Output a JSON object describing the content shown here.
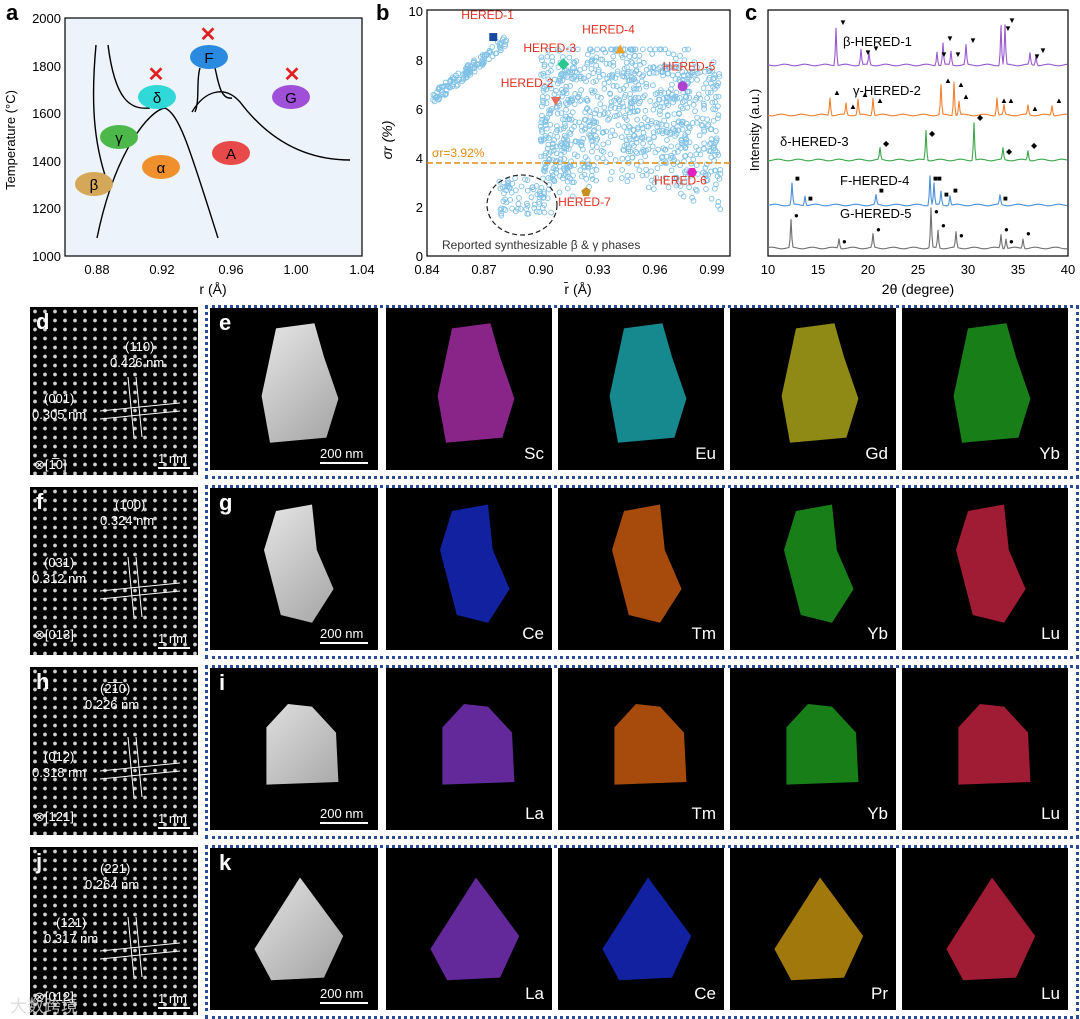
{
  "panels": {
    "a": "a",
    "b": "b",
    "c": "c",
    "d": "d",
    "e": "e",
    "f": "f",
    "g": "g",
    "h": "h",
    "i": "i",
    "j": "j",
    "k": "k"
  },
  "panel_a": {
    "ylabel": "Temperature (°C)",
    "xlabel": "r (Å)",
    "yticks": [
      "1000",
      "1200",
      "1400",
      "1600",
      "1800",
      "2000"
    ],
    "xticks": [
      "0.88",
      "0.92",
      "0.96",
      "1.00",
      "1.04"
    ],
    "phases": {
      "beta": "β",
      "gamma": "γ",
      "alpha": "α",
      "delta": "δ",
      "F": "F",
      "A": "A",
      "G": "G"
    },
    "cross": "✕"
  },
  "panel_b": {
    "ylabel": "σr (%)",
    "xlabel": "r̄ (Å)",
    "yticks": [
      "0",
      "2",
      "4",
      "6",
      "8",
      "10"
    ],
    "xticks": [
      "0.84",
      "0.87",
      "0.90",
      "0.93",
      "0.96",
      "0.99"
    ],
    "threshold_label": "σr=3.92%",
    "threshold": 3.92,
    "reported_label": "Reported synthesizable β & γ phases",
    "points": [
      {
        "label": "HERED-1",
        "x": 0.875,
        "y": 8.9
      },
      {
        "label": "HERED-2",
        "x": 0.908,
        "y": 6.3
      },
      {
        "label": "HERED-3",
        "x": 0.912,
        "y": 7.8
      },
      {
        "label": "HERED-4",
        "x": 0.942,
        "y": 8.4
      },
      {
        "label": "HERED-5",
        "x": 0.975,
        "y": 6.9
      },
      {
        "label": "HERED-6",
        "x": 0.98,
        "y": 3.4
      },
      {
        "label": "HERED-7",
        "x": 0.924,
        "y": 2.6
      }
    ]
  },
  "panel_c": {
    "ylabel": "Intensity (a.u.)",
    "xlabel": "2θ (degree)",
    "xticks": [
      "10",
      "15",
      "20",
      "25",
      "30",
      "35",
      "40"
    ],
    "traces": [
      "β-HERED-1",
      "γ-HERED-2",
      "δ-HERED-3",
      "F-HERED-4",
      "G-HERED-5"
    ],
    "trace_colors": [
      "#9b59d0",
      "#f08030",
      "#3aa84a",
      "#4a90d8",
      "#707070"
    ]
  },
  "hrtem": {
    "d": {
      "plane1": "(110)",
      "d1": "0.426 nm",
      "plane2": "(001)",
      "d2": "0.305 nm",
      "zone": "⊗[1̅0]",
      "scale": "1 nm"
    },
    "f": {
      "plane1": "(100)",
      "d1": "0.324 nm",
      "plane2": "(031)",
      "d2": "0.312 nm",
      "zone": "⊗[013]",
      "scale": "1 nm"
    },
    "h": {
      "plane1": "(2̅1̅0)",
      "d1": "0.226 nm",
      "plane2": "(012)",
      "d2": "0.318 nm",
      "zone": "⊗[121]",
      "scale": "1 nm"
    },
    "j": {
      "plane1": "(221)",
      "d1": "0.264 nm",
      "plane2": "(121)",
      "d2": "0.317 nm",
      "zone": "⊗[012]",
      "scale": "1 nm"
    }
  },
  "eds": {
    "scale": "200 nm",
    "e": [
      "Sc",
      "Eu",
      "Gd",
      "Yb"
    ],
    "g": [
      "Ce",
      "Tm",
      "Yb",
      "Lu"
    ],
    "i": [
      "La",
      "Tm",
      "Yb",
      "Lu"
    ],
    "k": [
      "La",
      "Ce",
      "Pr",
      "Lu"
    ]
  },
  "colors": {
    "Sc": "#c033c0",
    "Eu": "#1fc0c8",
    "Gd": "#c8c020",
    "Yb": "#22b022",
    "Ce": "#1a2ee0",
    "Tm": "#e86a10",
    "Lu": "#e0284a",
    "La": "#8a3ad8",
    "Pr": "#e0a810",
    "border": "#2c4a9a",
    "threshold": "#e08a10",
    "label_red": "#e03020"
  },
  "watermark": "大数跨境"
}
